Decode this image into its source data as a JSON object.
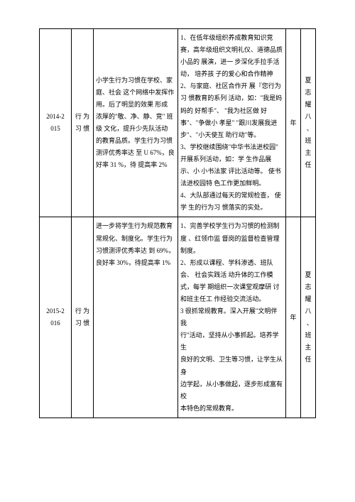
{
  "rows": [
    {
      "year": "2014-2\n015",
      "category": "行 为 习 惯",
      "left": "小学生行为习惯在学校、家 庭、社会 这个网络中发挥作用。后了明显的效果 形成 浓厚的\"敬、净、静、竞\" 班级 文化，提升少先队活动 的教育品质。学生行为习惯测评优秀率达 至 U 67%，良好率 31 %，待 提高率 2%",
      "right": "1、在低年级组织养成教育知识竞赛，高年级组织文明礼仪、道德品质小品的 展演，进一 步深化手拉手活动， 培养孩 子的爱心和合作精神 2、与家庭、社区合作开 展『您行为习 惯教育的系列 活动，如：\"我是妈妈的 好帮手\"、 \"我为社区做 好事\"、\"争做小 孝星\" \"跟川发展我进步\"、\"小天使互 助行动\"等。\n3、学校继续围绕\"中华书法进校园\"\n开展系列活动，如：学 生作品展示、小 小书法家 评比活动等。 使书法进校园特 色工作更加鲜明。\n4、大队部通过每天的常规检查， 使学 生的行为习 惯落实的实处。",
      "year2": "年",
      "owner": "夏 志 耀 八 、　班 主 任"
    },
    {
      "year": "2015-2\n016",
      "category": "行 为 习 惯",
      "left": "进一步将学生行为规范教育 常规化、制度化。学生行为 习惯测评优秀率达 到 69%， 良好率 30%，待提高率 1%",
      "right": "1、完善学校学生行为习惯的检测制度 、红领巾监 督岗的监督检查管理制度。\n2、形成以课程、学科渗透、班队会、 社会实践活 动升体的工作模式，每学 期组织一次课堂观摩研 讨和班主任工 作经验交流活动。\n3 很抓常规教育。深入开展\"文明伴我\n行\"活动，坚持从小事抓起。培养学生\n良好的文明、卫生等习惯，让学生从身\n边学起，从小事做起，逐步形成富有校\n本特色的常规教育。",
      "year2": "年",
      "owner": "夏 志 耀 八 、　班 主 任"
    }
  ]
}
